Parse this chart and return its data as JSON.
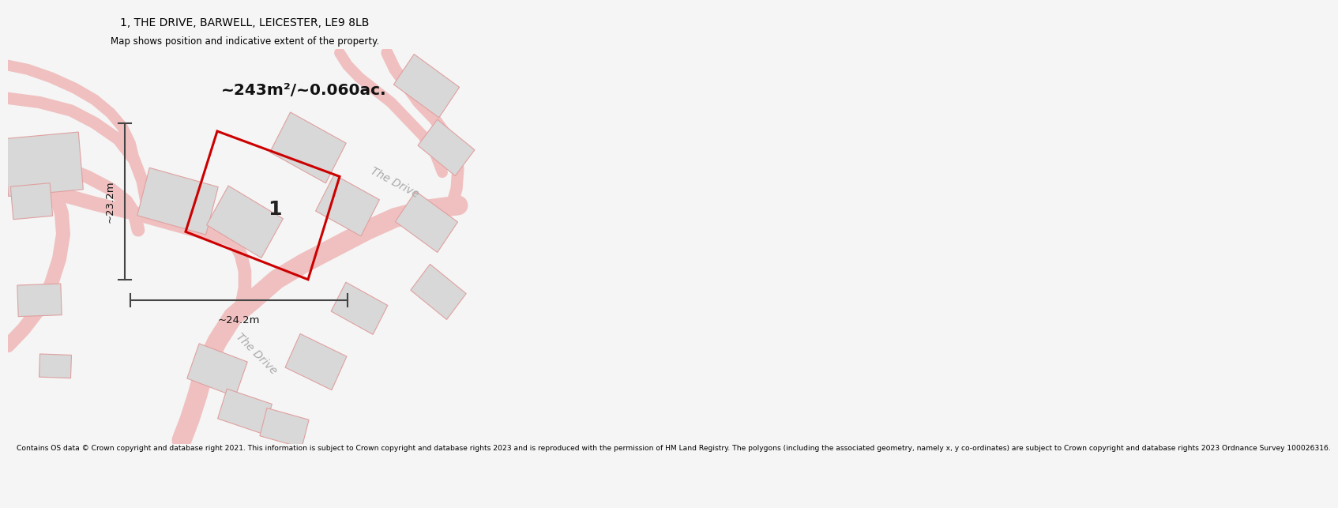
{
  "title_line1": "1, THE DRIVE, BARWELL, LEICESTER, LE9 8LB",
  "title_line2": "Map shows position and indicative extent of the property.",
  "area_text": "~243m²/~0.060ac.",
  "dimension_h": "~23.2m",
  "dimension_w": "~24.2m",
  "property_number": "1",
  "footer_text": "Contains OS data © Crown copyright and database right 2021. This information is subject to Crown copyright and database rights 2023 and is reproduced with the permission of HM Land Registry. The polygons (including the associated geometry, namely x, y co-ordinates) are subject to Crown copyright and database rights 2023 Ordnance Survey 100026316.",
  "bg_color": "#f5f5f5",
  "map_bg": "#ffffff",
  "road_color": "#f0c0c0",
  "road_edge_color": "#e8a8a8",
  "building_fill": "#d8d8d8",
  "building_edge": "#e0a0a0",
  "highlight_color": "#cc0000",
  "road_label_color": "#aaaaaa",
  "dim_line_color": "#444444"
}
